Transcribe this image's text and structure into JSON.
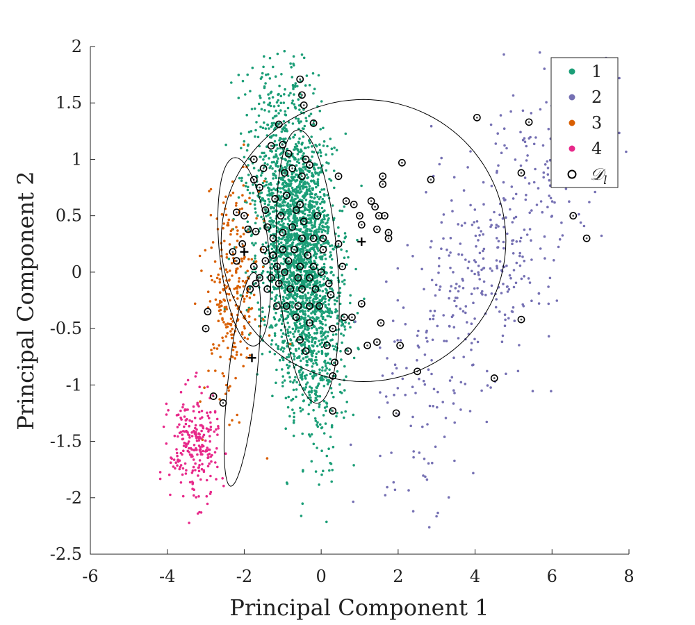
{
  "chart_data": {
    "type": "scatter",
    "xlabel": "Principal Component 1",
    "ylabel": "Principal Component 2",
    "xlim": [
      -6,
      8
    ],
    "ylim": [
      -2.5,
      2
    ],
    "xticks": [
      "-6",
      "-4",
      "-2",
      "0",
      "2",
      "4",
      "6",
      "8"
    ],
    "yticks": [
      "-2.5",
      "-2",
      "-1.5",
      "-1",
      "-0.5",
      "0",
      "0.5",
      "1",
      "1.5",
      "2"
    ],
    "legend_position": "top-right",
    "grid": false,
    "series": [
      {
        "name": "1",
        "color": "#1b9e77",
        "marker": "dot",
        "spread": {
          "center": [
            -0.6,
            0.2
          ],
          "sd": [
            0.75,
            0.48
          ],
          "rotation_deg": -62,
          "count": 2600
        }
      },
      {
        "name": "2",
        "color": "#7570b3",
        "marker": "dot",
        "spread": {
          "center": [
            4.3,
            0.0
          ],
          "sd": [
            1.6,
            0.55
          ],
          "rotation_deg": 28,
          "count": 450
        }
      },
      {
        "name": "3",
        "color": "#d95f02",
        "marker": "dot",
        "spread": {
          "center": [
            -2.3,
            -0.2
          ],
          "sd": [
            0.35,
            0.48
          ],
          "rotation_deg": 0,
          "count": 260
        }
      },
      {
        "name": "4",
        "color": "#e7298a",
        "marker": "dot",
        "spread": {
          "center": [
            -3.3,
            -1.55
          ],
          "sd": [
            0.32,
            0.24
          ],
          "rotation_deg": 0,
          "count": 240
        }
      },
      {
        "name": "𝒟l",
        "display_name": "𝒟",
        "display_subscript": "l",
        "color": "#000000",
        "marker": "open-circle-with-dot",
        "points": [
          [
            -0.55,
            1.71
          ],
          [
            -0.5,
            1.57
          ],
          [
            -0.45,
            1.48
          ],
          [
            -0.2,
            1.32
          ],
          [
            -1.1,
            1.31
          ],
          [
            -1.3,
            1.12
          ],
          [
            -1.0,
            1.13
          ],
          [
            -0.85,
            1.05
          ],
          [
            -1.75,
            1.0
          ],
          [
            -0.4,
            1.0
          ],
          [
            -0.3,
            0.95
          ],
          [
            -1.5,
            0.92
          ],
          [
            -0.95,
            0.88
          ],
          [
            -0.75,
            0.92
          ],
          [
            -0.5,
            0.85
          ],
          [
            -1.75,
            0.82
          ],
          [
            -1.6,
            0.75
          ],
          [
            -1.2,
            0.65
          ],
          [
            -0.9,
            0.68
          ],
          [
            -0.55,
            0.6
          ],
          [
            -2.2,
            0.53
          ],
          [
            -2.0,
            0.5
          ],
          [
            -1.45,
            0.55
          ],
          [
            -1.05,
            0.5
          ],
          [
            -0.65,
            0.55
          ],
          [
            -0.45,
            0.45
          ],
          [
            -0.1,
            0.5
          ],
          [
            -1.9,
            0.38
          ],
          [
            -1.7,
            0.36
          ],
          [
            -1.4,
            0.4
          ],
          [
            -1.25,
            0.3
          ],
          [
            -1.0,
            0.35
          ],
          [
            -0.75,
            0.4
          ],
          [
            -0.5,
            0.3
          ],
          [
            -0.2,
            0.3
          ],
          [
            0.05,
            0.3
          ],
          [
            -2.05,
            0.25
          ],
          [
            -1.5,
            0.2
          ],
          [
            -1.25,
            0.15
          ],
          [
            -1.0,
            0.2
          ],
          [
            -0.7,
            0.2
          ],
          [
            -0.35,
            0.15
          ],
          [
            0.05,
            0.2
          ],
          [
            -2.2,
            0.1
          ],
          [
            -1.75,
            0.05
          ],
          [
            -1.45,
            0.1
          ],
          [
            -1.15,
            0.05
          ],
          [
            -0.85,
            0.1
          ],
          [
            -0.55,
            0.05
          ],
          [
            -0.2,
            0.05
          ],
          [
            -1.6,
            -0.05
          ],
          [
            -1.3,
            -0.05
          ],
          [
            -0.95,
            0.0
          ],
          [
            -0.6,
            -0.05
          ],
          [
            -0.3,
            -0.05
          ],
          [
            0.0,
            0.0
          ],
          [
            -1.85,
            -0.15
          ],
          [
            -1.4,
            -0.15
          ],
          [
            -1.1,
            -0.1
          ],
          [
            -0.8,
            -0.15
          ],
          [
            -0.5,
            -0.15
          ],
          [
            -0.15,
            -0.15
          ],
          [
            0.2,
            -0.1
          ],
          [
            -1.15,
            -0.3
          ],
          [
            -0.9,
            -0.3
          ],
          [
            -0.6,
            -0.3
          ],
          [
            -0.3,
            -0.3
          ],
          [
            -0.65,
            -0.4
          ],
          [
            -0.3,
            -0.45
          ],
          [
            -0.55,
            -0.6
          ],
          [
            -0.4,
            -0.7
          ],
          [
            0.15,
            -0.65
          ],
          [
            0.3,
            -0.5
          ],
          [
            0.6,
            -0.4
          ],
          [
            0.8,
            -0.4
          ],
          [
            0.7,
            -0.7
          ],
          [
            0.35,
            -0.8
          ],
          [
            1.2,
            -0.65
          ],
          [
            -2.95,
            -0.35
          ],
          [
            -3.0,
            -0.5
          ],
          [
            -2.8,
            -1.1
          ],
          [
            -2.55,
            -1.16
          ],
          [
            0.3,
            -0.92
          ],
          [
            0.3,
            -1.23
          ],
          [
            1.95,
            -1.25
          ],
          [
            2.05,
            -0.65
          ],
          [
            2.5,
            -0.88
          ],
          [
            4.5,
            -0.94
          ],
          [
            5.2,
            -0.42
          ],
          [
            1.55,
            -0.45
          ],
          [
            1.45,
            -0.62
          ],
          [
            1.05,
            -0.28
          ],
          [
            1.4,
            0.58
          ],
          [
            1.5,
            0.5
          ],
          [
            1.65,
            0.5
          ],
          [
            1.75,
            0.35
          ],
          [
            1.75,
            0.3
          ],
          [
            1.3,
            0.63
          ],
          [
            1.45,
            0.38
          ],
          [
            0.85,
            0.6
          ],
          [
            1.0,
            0.5
          ],
          [
            1.05,
            0.42
          ],
          [
            0.65,
            0.63
          ],
          [
            0.45,
            0.85
          ],
          [
            1.6,
            0.78
          ],
          [
            1.6,
            0.85
          ],
          [
            2.1,
            0.97
          ],
          [
            2.85,
            0.82
          ],
          [
            4.05,
            1.37
          ],
          [
            5.4,
            1.33
          ],
          [
            5.2,
            0.88
          ],
          [
            6.55,
            0.5
          ],
          [
            6.9,
            0.3
          ],
          [
            -2.3,
            0.18
          ],
          [
            -1.7,
            -0.1
          ],
          [
            0.45,
            0.25
          ],
          [
            0.55,
            0.05
          ],
          [
            0.25,
            -0.2
          ],
          [
            -0.05,
            -0.3
          ]
        ]
      }
    ],
    "centroids": [
      [
        -2.0,
        0.18
      ],
      [
        1.05,
        0.27
      ],
      [
        -1.8,
        -0.76
      ]
    ],
    "ellipses": [
      {
        "center": [
          1.1,
          0.28
        ],
        "rx": 3.7,
        "ry": 1.25,
        "rotation_deg": 0
      },
      {
        "center": [
          -0.35,
          0.05
        ],
        "rx": 1.25,
        "ry": 0.76,
        "rotation_deg": -72
      },
      {
        "center": [
          -2.0,
          0.18
        ],
        "rx": 0.9,
        "ry": 0.6,
        "rotation_deg": -60
      },
      {
        "center": [
          -2.05,
          -0.95
        ],
        "rx": 1.0,
        "ry": 0.35,
        "rotation_deg": 70
      }
    ]
  }
}
